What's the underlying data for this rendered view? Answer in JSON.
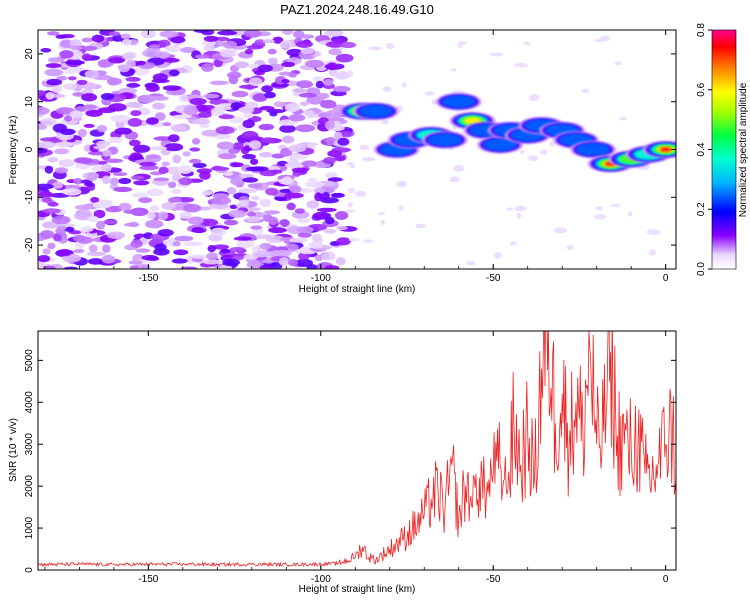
{
  "title": "PAZ1.2024.248.16.49.G10",
  "chart_data": [
    {
      "type": "heatmap",
      "xlabel": "Height of straight line (km)",
      "ylabel": "Frequency (Hz)",
      "xlim": [
        -182,
        3
      ],
      "ylim": [
        -25,
        25
      ],
      "xticks": [
        -150,
        -100,
        -50,
        0
      ],
      "yticks": [
        -20,
        -10,
        0,
        10,
        20
      ],
      "colorbar": {
        "label": "Normalized spectral amplitude",
        "range": [
          0.0,
          0.8
        ],
        "ticks": [
          0.0,
          0.2,
          0.4,
          0.6,
          0.8
        ],
        "colormap": [
          "#ffffff",
          "#e9d7ff",
          "#8a00ff",
          "#0000ff",
          "#00d7ff",
          "#00ff6a",
          "#aaff00",
          "#ffff00",
          "#ff8000",
          "#ff0000",
          "#ff00aa"
        ]
      },
      "noise_region": {
        "x": [
          -182,
          -92
        ],
        "y": [
          -25,
          25
        ],
        "amplitude": 0.1
      },
      "features": [
        {
          "x": -88,
          "y": 8,
          "amplitude": 0.7
        },
        {
          "x": -84,
          "y": 8,
          "amplitude": 0.35
        },
        {
          "x": -78,
          "y": 0,
          "amplitude": 0.3
        },
        {
          "x": -74,
          "y": 2,
          "amplitude": 0.35
        },
        {
          "x": -68,
          "y": 3,
          "amplitude": 0.45
        },
        {
          "x": -64,
          "y": 2,
          "amplitude": 0.3
        },
        {
          "x": -60,
          "y": 10,
          "amplitude": 0.3
        },
        {
          "x": -56,
          "y": 6,
          "amplitude": 0.65
        },
        {
          "x": -52,
          "y": 4,
          "amplitude": 0.3
        },
        {
          "x": -48,
          "y": 1,
          "amplitude": 0.3
        },
        {
          "x": -45,
          "y": 4,
          "amplitude": 0.28
        },
        {
          "x": -40,
          "y": 3,
          "amplitude": 0.25
        },
        {
          "x": -36,
          "y": 5,
          "amplitude": 0.3
        },
        {
          "x": -30,
          "y": 4,
          "amplitude": 0.25
        },
        {
          "x": -26,
          "y": 2,
          "amplitude": 0.28
        },
        {
          "x": -21,
          "y": 0,
          "amplitude": 0.3
        },
        {
          "x": -16,
          "y": -3,
          "amplitude": 0.8
        },
        {
          "x": -10,
          "y": -2,
          "amplitude": 0.55
        },
        {
          "x": -5,
          "y": -1,
          "amplitude": 0.45
        },
        {
          "x": 0,
          "y": 0,
          "amplitude": 0.8
        }
      ]
    },
    {
      "type": "line",
      "xlabel": "Height of straight line (km)",
      "ylabel": "SNR (10 * v/v)",
      "xlim": [
        -182,
        3
      ],
      "ylim": [
        0,
        5700
      ],
      "xticks": [
        -150,
        -100,
        -50,
        0
      ],
      "yticks": [
        0,
        1000,
        2000,
        3000,
        4000,
        5000
      ],
      "color": "#ee2222",
      "series": [
        {
          "x": [
            -182,
            -170,
            -160,
            -150,
            -140,
            -130,
            -120,
            -110,
            -100,
            -95,
            -90,
            -88,
            -86,
            -84,
            -80,
            -76,
            -72,
            -70,
            -68,
            -66,
            -64,
            -62,
            -60,
            -58,
            -56,
            -54,
            -52,
            -50,
            -48,
            -46,
            -44,
            -42,
            -40,
            -38,
            -36,
            -34,
            -32,
            -30,
            -28,
            -26,
            -24,
            -22,
            -20,
            -18,
            -16,
            -14,
            -12,
            -10,
            -8,
            -6,
            -4,
            -2,
            0,
            2,
            3
          ],
          "y": [
            130,
            140,
            130,
            135,
            140,
            130,
            135,
            130,
            140,
            160,
            300,
            550,
            300,
            250,
            500,
            750,
            1100,
            1300,
            1700,
            1900,
            1400,
            2500,
            1200,
            2000,
            1500,
            2200,
            1700,
            2300,
            2500,
            1800,
            3500,
            2500,
            3300,
            2200,
            4800,
            5700,
            3500,
            4200,
            3000,
            4000,
            3300,
            5300,
            3000,
            3300,
            5200,
            3200,
            3000,
            2900,
            3100,
            2300,
            2200,
            2600,
            3000,
            3400,
            2200
          ]
        }
      ]
    }
  ]
}
